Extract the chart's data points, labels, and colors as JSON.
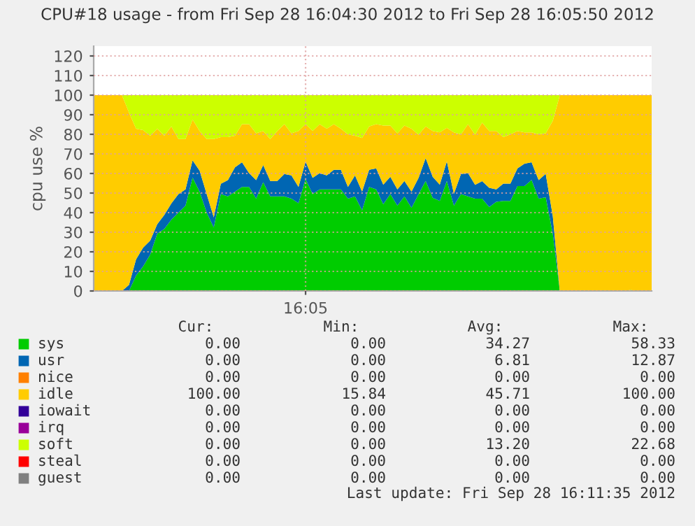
{
  "chart_data": {
    "type": "area",
    "stacked": true,
    "title": "CPU#18 usage - from Fri Sep 28 16:04:30 2012 to Fri Sep 28 16:05:50 2012",
    "ylabel": "cpu use %",
    "categories": [
      null,
      null,
      null,
      null,
      null,
      null,
      null,
      null,
      null,
      null,
      null,
      null,
      null,
      null,
      null,
      null,
      null,
      null,
      null,
      null,
      null,
      null,
      null,
      null,
      null,
      null,
      null,
      null,
      null,
      null,
      "16:05",
      null,
      null,
      null,
      null,
      null,
      null,
      null,
      null,
      null,
      null,
      null,
      null,
      null,
      null,
      null,
      null,
      null,
      null,
      null,
      null,
      null,
      null,
      null,
      null,
      null,
      null,
      null,
      null,
      null,
      null,
      null,
      null,
      null,
      null,
      null,
      null,
      null,
      null,
      null,
      null,
      null,
      null,
      null,
      null,
      null,
      null,
      null,
      null,
      null
    ],
    "series": [
      {
        "name": "sys",
        "color": "#00cc00",
        "values": [
          0,
          0,
          0,
          0,
          0,
          0,
          7.9,
          12.6,
          18.6,
          29.3,
          31.7,
          36.4,
          40.0,
          43.6,
          57.9,
          50.7,
          40.0,
          32.4,
          49.5,
          48.3,
          50.7,
          53.1,
          53.1,
          47.1,
          55.5,
          48.3,
          48.3,
          48.3,
          47.1,
          44.8,
          57.1,
          49.5,
          51.9,
          51.9,
          51.9,
          51.9,
          47.1,
          48.3,
          41.2,
          53.1,
          51.9,
          44.3,
          49.5,
          43.6,
          48.3,
          42.4,
          49.5,
          56.2,
          47.6,
          46.0,
          56.2,
          43.6,
          49.5,
          48.3,
          47.1,
          47.1,
          42.9,
          45.5,
          46.0,
          46.0,
          53.6,
          53.6,
          56.7,
          47.1,
          47.9,
          29.3,
          0,
          0,
          0,
          0,
          0,
          0,
          0,
          0,
          0,
          0,
          0.5,
          0,
          0,
          0
        ]
      },
      {
        "name": "usr",
        "color": "#0066b3",
        "values": [
          0,
          0,
          0,
          0,
          0,
          3.1,
          8.3,
          9.5,
          7.1,
          4.8,
          7.1,
          8.3,
          9.5,
          8.3,
          8.8,
          10.7,
          9.5,
          5.2,
          5.2,
          8.3,
          12.4,
          12.6,
          7.1,
          9.5,
          8.8,
          7.9,
          7.9,
          11.4,
          11.9,
          8.3,
          9.0,
          8.3,
          8.3,
          7.1,
          10.0,
          10.0,
          6.0,
          10.7,
          9.5,
          8.8,
          10.7,
          10.0,
          8.8,
          8.3,
          7.9,
          8.3,
          8.3,
          11.7,
          10.7,
          8.3,
          10.0,
          6.0,
          10.2,
          11.9,
          7.1,
          9.0,
          9.8,
          6.4,
          8.8,
          8.8,
          9.0,
          11.4,
          9.0,
          9.5,
          11.9,
          9.0,
          0,
          0,
          0,
          0,
          0,
          0,
          0,
          0,
          0,
          0,
          0,
          0,
          0,
          0
        ]
      },
      {
        "name": "nice",
        "color": "#ff8000",
        "values": [
          null,
          null,
          null,
          null,
          null,
          null,
          null,
          null,
          null,
          null,
          null,
          null,
          null,
          null,
          null,
          null,
          null,
          null,
          null,
          null,
          null,
          null,
          null,
          null,
          null,
          null,
          null,
          null,
          null,
          null,
          null,
          null,
          null,
          null,
          null,
          null,
          null,
          null,
          null,
          null,
          null,
          null,
          null,
          null,
          null,
          null,
          null,
          null,
          null,
          null,
          null,
          null,
          null,
          null,
          null,
          null,
          null,
          null,
          null,
          null,
          null,
          null,
          null,
          null,
          null,
          null,
          null,
          null,
          null,
          null,
          null,
          null,
          null,
          null,
          null,
          null,
          null,
          null,
          null,
          null
        ]
      },
      {
        "name": "idle",
        "color": "#ffcc00",
        "values": [
          100,
          100,
          100,
          100,
          100,
          88.1,
          66.7,
          60.0,
          53.6,
          48.8,
          40.5,
          39.3,
          28.1,
          25.7,
          20.9,
          20.3,
          28.1,
          40.0,
          23.9,
          22.0,
          16.2,
          19.5,
          25.0,
          23.9,
          17.4,
          21.4,
          25.5,
          25.5,
          21.5,
          28.6,
          19.1,
          23.9,
          25.0,
          23.9,
          23.3,
          21.0,
          26.9,
          20.3,
          27.4,
          22.1,
          22.6,
          30.2,
          26.2,
          28.6,
          28.3,
          32.2,
          22.0,
          16.1,
          23.4,
          26.7,
          17.1,
          31.4,
          20.3,
          25.0,
          25.6,
          29.9,
          29.0,
          29.8,
          23.8,
          25.2,
          19.1,
          16.0,
          15.3,
          23.4,
          20.7,
          48.6,
          100,
          100,
          100,
          100,
          100,
          100,
          100,
          100,
          100,
          100,
          99.5,
          100,
          100,
          100
        ]
      },
      {
        "name": "iowait",
        "color": "#330099",
        "values": [
          null,
          null,
          null,
          null,
          null,
          null,
          null,
          null,
          null,
          null,
          null,
          null,
          null,
          null,
          null,
          null,
          null,
          null,
          null,
          null,
          null,
          null,
          null,
          null,
          null,
          null,
          null,
          null,
          null,
          null,
          null,
          null,
          null,
          null,
          null,
          null,
          null,
          null,
          null,
          null,
          null,
          null,
          null,
          null,
          null,
          null,
          null,
          null,
          null,
          null,
          null,
          null,
          null,
          null,
          null,
          null,
          null,
          null,
          null,
          null,
          null,
          null,
          null,
          null,
          null,
          null,
          null,
          null,
          null,
          null,
          null,
          null,
          null,
          null,
          null,
          null,
          null,
          null,
          null,
          null
        ]
      },
      {
        "name": "irq",
        "color": "#990099",
        "values": [
          null,
          null,
          null,
          null,
          null,
          null,
          null,
          null,
          null,
          null,
          null,
          null,
          null,
          null,
          null,
          null,
          null,
          null,
          null,
          null,
          null,
          null,
          null,
          null,
          null,
          null,
          null,
          null,
          null,
          null,
          null,
          null,
          null,
          null,
          null,
          null,
          null,
          null,
          null,
          null,
          null,
          null,
          null,
          null,
          null,
          null,
          null,
          null,
          null,
          null,
          null,
          null,
          null,
          null,
          null,
          null,
          null,
          null,
          null,
          null,
          null,
          null,
          null,
          null,
          null,
          null,
          null,
          null,
          null,
          null,
          null,
          null,
          null,
          null,
          null,
          null,
          null,
          null,
          null,
          null
        ]
      },
      {
        "name": "soft",
        "color": "#ccff00",
        "values": [
          0,
          0,
          0,
          0,
          0,
          8.8,
          17.1,
          17.9,
          20.7,
          17.1,
          20.7,
          16.0,
          22.4,
          22.4,
          12.4,
          18.3,
          22.4,
          22.4,
          21.4,
          21.4,
          20.7,
          14.8,
          14.8,
          19.5,
          18.3,
          22.4,
          18.3,
          14.8,
          19.5,
          18.3,
          14.8,
          18.3,
          14.8,
          17.1,
          14.8,
          17.1,
          20.0,
          20.7,
          21.9,
          16.0,
          14.8,
          15.5,
          15.5,
          19.5,
          15.5,
          17.1,
          20.2,
          16.0,
          18.3,
          19.0,
          16.7,
          19.0,
          20.0,
          14.8,
          20.2,
          14.0,
          18.3,
          18.3,
          21.4,
          20.0,
          18.3,
          19.0,
          19.0,
          20.0,
          19.5,
          13.1,
          0,
          0,
          0,
          0,
          0,
          0,
          0,
          0,
          0,
          0,
          0,
          0,
          0,
          0
        ]
      },
      {
        "name": "steal",
        "color": "#ff0000",
        "values": [
          null,
          null,
          null,
          null,
          null,
          null,
          null,
          null,
          null,
          null,
          null,
          null,
          null,
          null,
          null,
          null,
          null,
          null,
          null,
          null,
          null,
          null,
          null,
          null,
          null,
          null,
          null,
          null,
          null,
          null,
          null,
          null,
          null,
          null,
          null,
          null,
          null,
          null,
          null,
          null,
          null,
          null,
          null,
          null,
          null,
          null,
          null,
          null,
          null,
          null,
          null,
          null,
          null,
          null,
          null,
          null,
          null,
          null,
          null,
          null,
          null,
          null,
          null,
          null,
          null,
          null,
          null,
          null,
          null,
          null,
          null,
          null,
          null,
          null,
          null,
          null,
          null,
          null,
          null,
          null
        ]
      },
      {
        "name": "guest",
        "color": "#808080",
        "values": [
          null,
          null,
          null,
          null,
          null,
          null,
          null,
          null,
          null,
          null,
          null,
          null,
          null,
          null,
          null,
          null,
          null,
          null,
          null,
          null,
          null,
          null,
          null,
          null,
          null,
          null,
          null,
          null,
          null,
          null,
          null,
          null,
          null,
          null,
          null,
          null,
          null,
          null,
          null,
          null,
          null,
          null,
          null,
          null,
          null,
          null,
          null,
          null,
          null,
          null,
          null,
          null,
          null,
          null,
          null,
          null,
          null,
          null,
          null,
          null,
          null,
          null,
          null,
          null,
          null,
          null,
          null,
          null,
          null,
          null,
          null,
          null,
          null,
          null,
          null,
          null,
          null,
          null,
          null,
          null
        ]
      }
    ],
    "ylim": [
      0,
      125
    ],
    "yticks": [
      0,
      10,
      20,
      30,
      40,
      50,
      60,
      70,
      80,
      90,
      100,
      110,
      120
    ],
    "grid": true,
    "line_style": "dotted",
    "legend": "bottom",
    "annotations": [
      "Cur:",
      "Min:",
      "Avg:",
      "Max:",
      "0.00",
      "0.00",
      "34.27",
      "58.33",
      "0.00",
      "0.00",
      "6.81",
      "12.87",
      "0.00",
      "0.00",
      "0.00",
      "0.00",
      "100.00",
      "15.84",
      "45.71",
      "100.00",
      "0.00",
      "0.00",
      "0.00",
      "0.00",
      "0.00",
      "0.00",
      "0.00",
      "0.00",
      "0.00",
      "0.00",
      "13.20",
      "22.68",
      "0.00",
      "0.00",
      "0.00",
      "0.00",
      "0.00",
      "0.00",
      "0.00",
      "0.00",
      "Last update: Fri Sep 28 16:11:35 2012"
    ]
  }
}
